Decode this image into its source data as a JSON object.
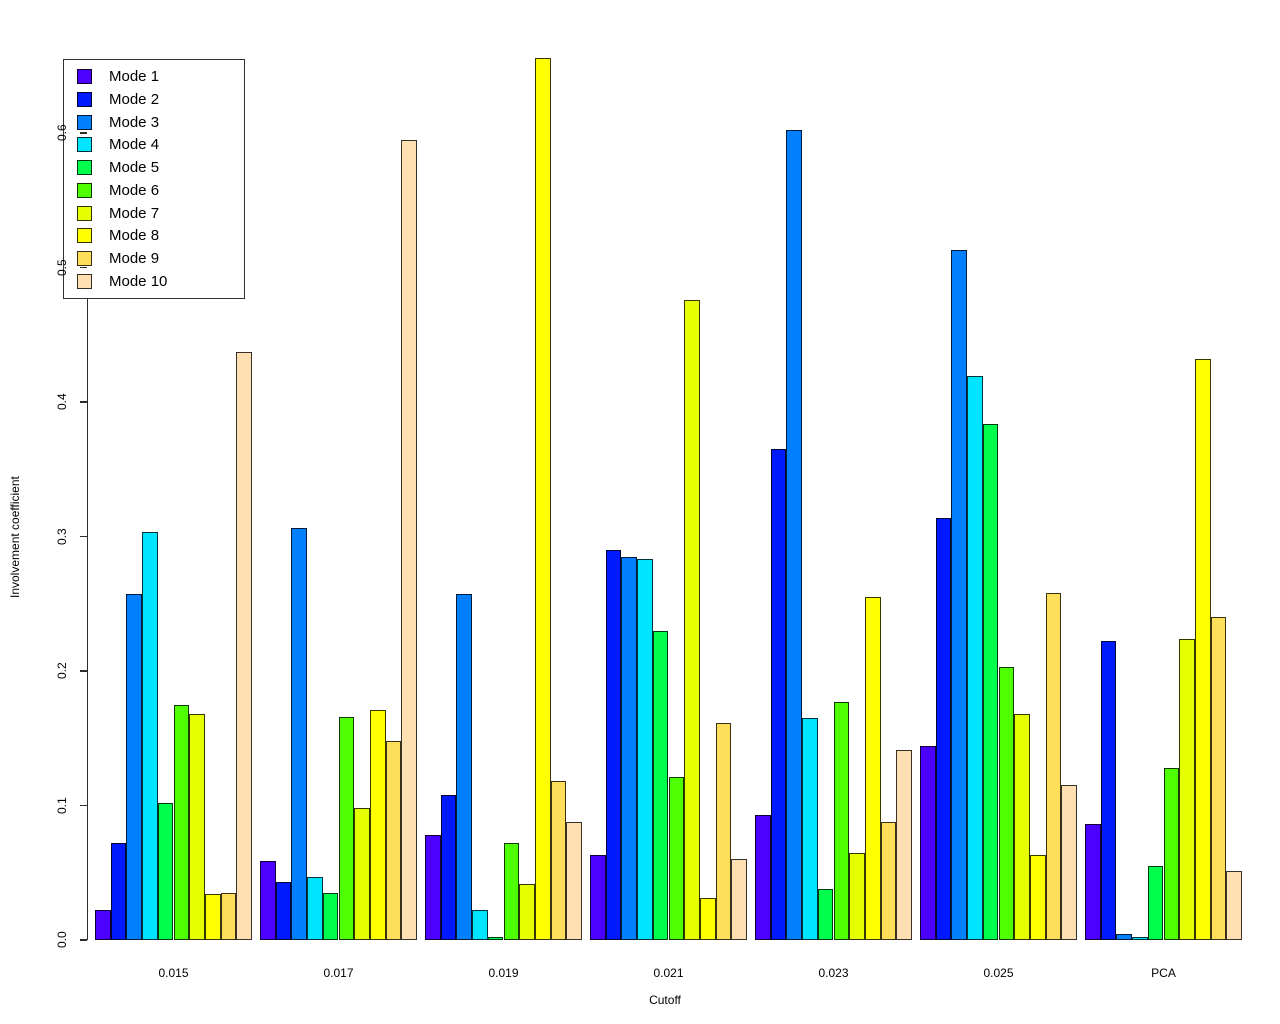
{
  "figure": {
    "background": "#ffffff"
  },
  "chart_data": {
    "type": "bar",
    "title": "",
    "xlabel": "Cutoff",
    "ylabel": "Involvement coefficient",
    "categories": [
      "0.015",
      "0.017",
      "0.019",
      "0.021",
      "0.023",
      "0.025",
      "PCA"
    ],
    "series": [
      {
        "name": "Mode 1",
        "color": "#4C00FF",
        "values": [
          0.022,
          0.059,
          0.078,
          0.063,
          0.093,
          0.144,
          0.086
        ]
      },
      {
        "name": "Mode 2",
        "color": "#0019FF",
        "values": [
          0.072,
          0.043,
          0.108,
          0.29,
          0.365,
          0.314,
          0.222
        ]
      },
      {
        "name": "Mode 3",
        "color": "#0080FF",
        "values": [
          0.257,
          0.306,
          0.257,
          0.285,
          0.602,
          0.513,
          0.0045
        ]
      },
      {
        "name": "Mode 4",
        "color": "#00E5FF",
        "values": [
          0.303,
          0.047,
          0.022,
          0.283,
          0.165,
          0.419,
          0.002
        ]
      },
      {
        "name": "Mode 5",
        "color": "#00FF4D",
        "values": [
          0.102,
          0.035,
          0.002,
          0.23,
          0.038,
          0.384,
          0.055
        ]
      },
      {
        "name": "Mode 6",
        "color": "#4DFF00",
        "values": [
          0.175,
          0.166,
          0.072,
          0.121,
          0.177,
          0.203,
          0.128
        ]
      },
      {
        "name": "Mode 7",
        "color": "#E6FF00",
        "values": [
          0.168,
          0.098,
          0.042,
          0.476,
          0.065,
          0.168,
          0.224
        ]
      },
      {
        "name": "Mode 8",
        "color": "#FFFF00",
        "values": [
          0.034,
          0.171,
          0.656,
          0.031,
          0.255,
          0.063,
          0.432
        ]
      },
      {
        "name": "Mode 9",
        "color": "#FFDE59",
        "values": [
          0.035,
          0.148,
          0.118,
          0.161,
          0.088,
          0.258,
          0.24
        ]
      },
      {
        "name": "Mode 10",
        "color": "#FFE0B3",
        "values": [
          0.437,
          0.595,
          0.088,
          0.06,
          0.141,
          0.115,
          0.051
        ]
      }
    ],
    "y_ticks": [
      "0.0",
      "0.1",
      "0.2",
      "0.3",
      "0.4",
      "0.5",
      "0.6"
    ],
    "ylim": [
      0,
      0.66
    ],
    "grid": false,
    "legend_position": "top-left",
    "bar_border_color": "#1a1a1a",
    "axis_color": "#2d2d2d"
  }
}
